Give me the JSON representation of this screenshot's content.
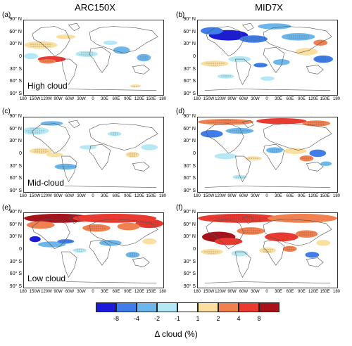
{
  "columns": [
    {
      "title": "ARC150X"
    },
    {
      "title": "MID7X"
    }
  ],
  "panels": [
    {
      "label": "(a)",
      "text": "High cloud"
    },
    {
      "label": "(b)",
      "text": ""
    },
    {
      "label": "(c)",
      "text": ""
    },
    {
      "label": "(d)",
      "text": ""
    },
    {
      "label": "(e)",
      "text": ""
    },
    {
      "label": "(f)",
      "text": ""
    }
  ],
  "row_texts": [
    "High cloud",
    "Mid-cloud",
    "Low cloud"
  ],
  "y_ticks": [
    "90° N",
    "60° N",
    "30° N",
    "0",
    "30° S",
    "60° S",
    "90° S"
  ],
  "x_ticks": [
    "180",
    "150W",
    "120W",
    "90W",
    "60W",
    "30W",
    "0",
    "30E",
    "60E",
    "90E",
    "120E",
    "150E",
    "180"
  ],
  "colorbar": {
    "labels": [
      "-8",
      "-4",
      "-2",
      "-1",
      "1",
      "2",
      "4",
      "8"
    ],
    "colors": [
      "#1c1cd8",
      "#3f7ee8",
      "#6cb6ec",
      "#b4e8f4",
      "#ffffff",
      "#fadfa0",
      "#f08050",
      "#e83a30",
      "#a8121a"
    ],
    "title": "Δ cloud (%)"
  }
}
